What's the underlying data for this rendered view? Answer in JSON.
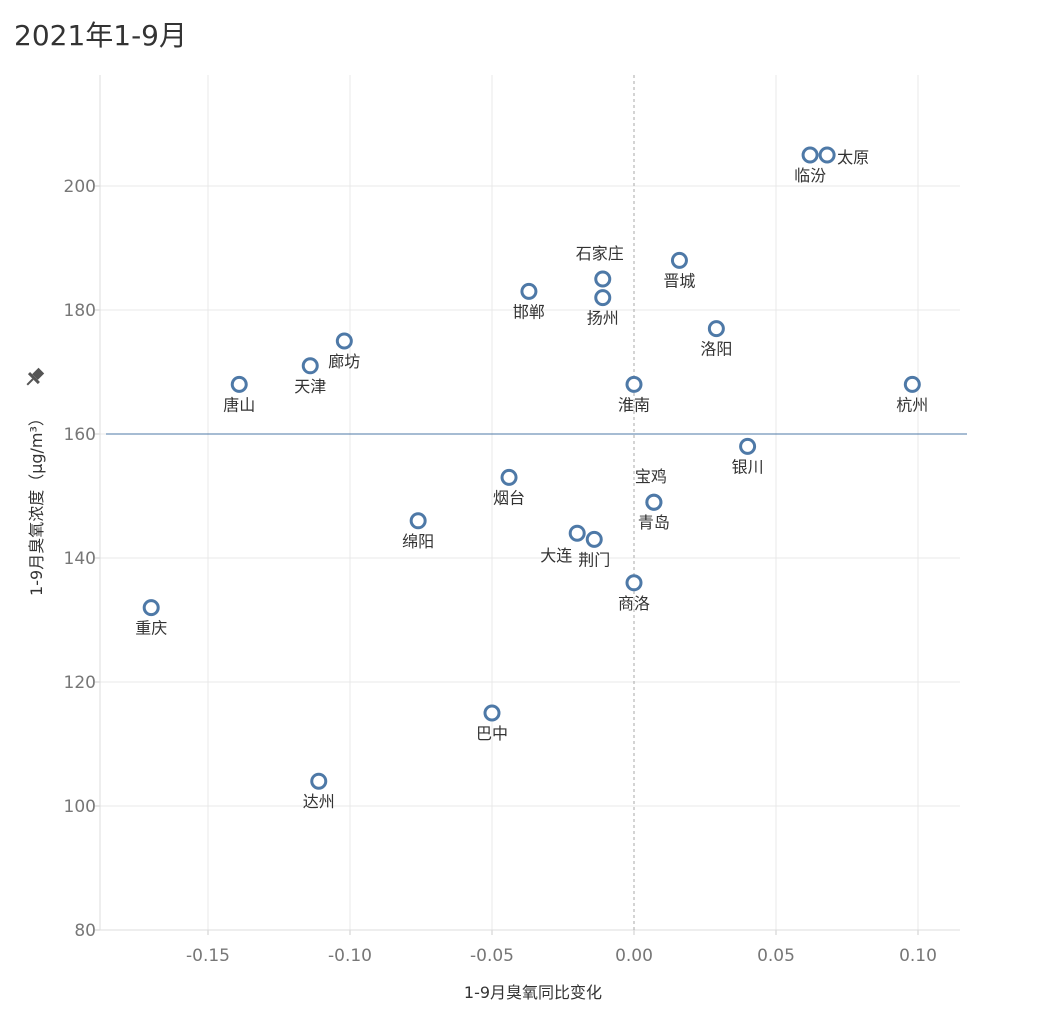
{
  "title": "2021年1-9月",
  "chart_data": {
    "type": "scatter",
    "xlabel": "1-9月臭氧同比变化",
    "ylabel": "1-9月臭氧浓度（μg/m³）",
    "x_ticks": [
      "-0.15",
      "-0.10",
      "-0.05",
      "0.00",
      "0.05",
      "0.10"
    ],
    "y_ticks": [
      "80",
      "100",
      "120",
      "140",
      "160",
      "180",
      "200"
    ],
    "xlim": [
      -0.18,
      0.115
    ],
    "ylim": [
      78,
      216
    ],
    "reference_lines": {
      "horizontal_y": 160,
      "vertical_x": 0
    },
    "marker_color": "#4e79a7",
    "ref_line_color": "#4e79a7",
    "grid": true,
    "points": [
      {
        "name": "太原",
        "x": 0.068,
        "y": 205,
        "label_pos": "right"
      },
      {
        "name": "临汾",
        "x": 0.062,
        "y": 205,
        "label_pos": "below"
      },
      {
        "name": "石家庄",
        "x": -0.011,
        "y": 185,
        "label_pos": "above"
      },
      {
        "name": "扬州",
        "x": -0.011,
        "y": 182,
        "label_pos": "below"
      },
      {
        "name": "晋城",
        "x": 0.016,
        "y": 188,
        "label_pos": "below"
      },
      {
        "name": "邯郸",
        "x": -0.037,
        "y": 183,
        "label_pos": "below"
      },
      {
        "name": "洛阳",
        "x": 0.029,
        "y": 177,
        "label_pos": "below"
      },
      {
        "name": "廊坊",
        "x": -0.102,
        "y": 175,
        "label_pos": "below"
      },
      {
        "name": "天津",
        "x": -0.114,
        "y": 171,
        "label_pos": "below"
      },
      {
        "name": "唐山",
        "x": -0.139,
        "y": 168,
        "label_pos": "below"
      },
      {
        "name": "淮南",
        "x": 0.0,
        "y": 168,
        "label_pos": "below"
      },
      {
        "name": "杭州",
        "x": 0.098,
        "y": 168,
        "label_pos": "below"
      },
      {
        "name": "银川",
        "x": 0.04,
        "y": 158,
        "label_pos": "below"
      },
      {
        "name": "烟台",
        "x": -0.044,
        "y": 153,
        "label_pos": "below"
      },
      {
        "name": "宝鸡",
        "x": 0.007,
        "y": 149,
        "label_pos": "above"
      },
      {
        "name": "青岛",
        "x": 0.007,
        "y": 149,
        "label_pos": "below"
      },
      {
        "name": "绵阳",
        "x": -0.076,
        "y": 146,
        "label_pos": "below"
      },
      {
        "name": "大连",
        "x": -0.02,
        "y": 144,
        "label_pos": "below-left"
      },
      {
        "name": "荆门",
        "x": -0.014,
        "y": 143,
        "label_pos": "below"
      },
      {
        "name": "商洛",
        "x": 0.0,
        "y": 136,
        "label_pos": "below"
      },
      {
        "name": "重庆",
        "x": -0.17,
        "y": 132,
        "label_pos": "below"
      },
      {
        "name": "巴中",
        "x": -0.05,
        "y": 115,
        "label_pos": "below"
      },
      {
        "name": "达州",
        "x": -0.111,
        "y": 104,
        "label_pos": "below"
      }
    ]
  }
}
